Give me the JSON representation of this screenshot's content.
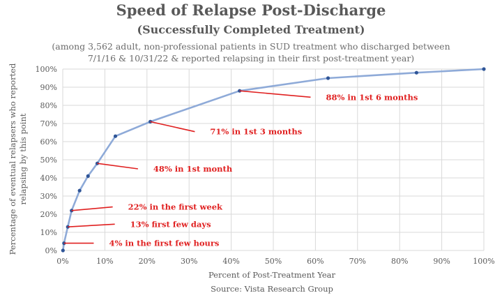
{
  "chart_data": {
    "type": "line",
    "title": "Speed of Relapse Post-Discharge",
    "subtitle": "(Successfully Completed Treatment)",
    "note_lines": [
      "(among 3,562 adult, non-professional patients in SUD treatment who discharged between",
      "7/1/16 & 10/31/22 & reported relapsing in their first post-treatment year)"
    ],
    "xlabel": "Percent of Post-Treatment Year",
    "ylabel_lines": [
      "Percentage of eventual relapsers who reported",
      "relapsing by this point"
    ],
    "source": "Source: Vista Research Group",
    "xlim": [
      0,
      100
    ],
    "ylim": [
      0,
      100
    ],
    "x_ticks": [
      "0%",
      "10%",
      "20%",
      "30%",
      "40%",
      "50%",
      "60%",
      "70%",
      "80%",
      "90%",
      "100%"
    ],
    "y_ticks": [
      "0%",
      "10%",
      "20%",
      "30%",
      "40%",
      "50%",
      "60%",
      "70%",
      "80%",
      "90%",
      "100%"
    ],
    "grid": true,
    "line_color": "#8eaad8",
    "marker_color": "#2f5597",
    "annotation_color": "#e02020",
    "series": [
      {
        "x": [
          0.05,
          0.3,
          1.2,
          2.1,
          4.0,
          6.0,
          8.2,
          12.5,
          20.8,
          42.0,
          63.0,
          84.0,
          100.0
        ],
        "y": [
          0,
          4,
          13,
          22,
          33,
          41,
          48,
          63,
          71,
          88,
          95,
          98,
          100
        ]
      }
    ],
    "annotations": [
      {
        "text": "4% in the first few hours",
        "x": 0.3,
        "y": 4,
        "label_x": 11,
        "label_y": 4
      },
      {
        "text": "13% first few days",
        "x": 1.2,
        "y": 13,
        "label_x": 16,
        "label_y": 14.5
      },
      {
        "text": "22% in the first week",
        "x": 2.1,
        "y": 22,
        "label_x": 15.5,
        "label_y": 24
      },
      {
        "text": "48% in 1st month",
        "x": 8.2,
        "y": 48,
        "label_x": 21.5,
        "label_y": 45
      },
      {
        "text": "71% in 1st 3 months",
        "x": 20.8,
        "y": 71,
        "label_x": 35,
        "label_y": 65.5
      },
      {
        "text": "88% in 1st 6 months",
        "x": 42.0,
        "y": 88,
        "label_x": 62.5,
        "label_y": 84.5
      }
    ]
  }
}
